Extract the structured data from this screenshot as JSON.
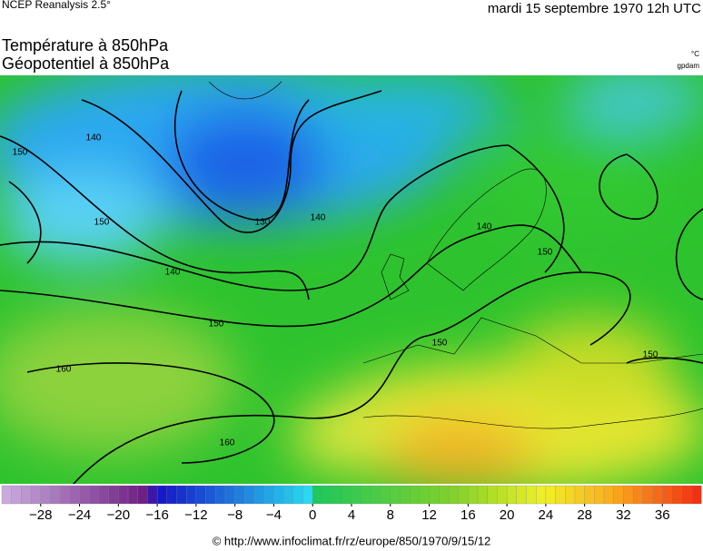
{
  "header": {
    "source": "NCEP Reanalysis 2.5°",
    "date": "mardi 15 septembre 1970 12h UTC"
  },
  "titles": [
    "Température à 850hPa",
    "Géopotentiel à 850hPa"
  ],
  "units": [
    "°C",
    "gpdam"
  ],
  "contour_labels": [
    "150",
    "140",
    "150",
    "140",
    "130",
    "140",
    "140",
    "150",
    "150",
    "150",
    "160",
    "160",
    "150"
  ],
  "colorbar": {
    "min": -32,
    "max": 40,
    "ticks": [
      {
        "value": -28,
        "label": "−28"
      },
      {
        "value": -24,
        "label": "−24"
      },
      {
        "value": -20,
        "label": "−20"
      },
      {
        "value": -16,
        "label": "−16"
      },
      {
        "value": -12,
        "label": "−12"
      },
      {
        "value": -8,
        "label": "−8"
      },
      {
        "value": -4,
        "label": "−4"
      },
      0,
      4,
      8,
      12,
      16,
      20,
      24,
      28,
      32,
      36
    ]
  },
  "footer": "© http://www.infoclimat.fr/rz/europe/850/1970/9/15/12"
}
